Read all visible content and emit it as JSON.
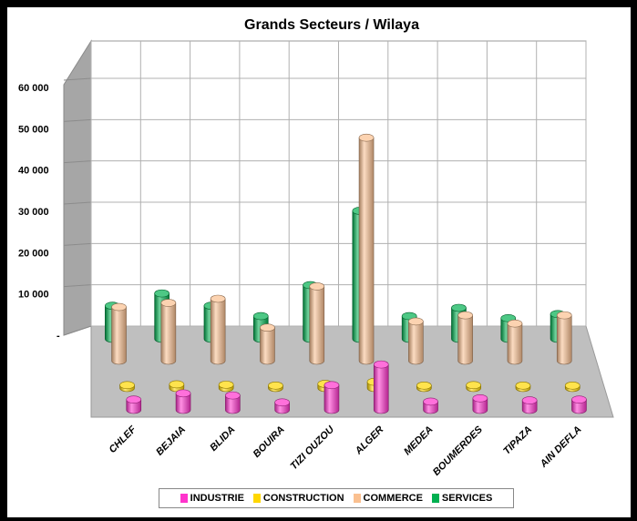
{
  "chart_data": {
    "type": "bar",
    "title": "Grands Secteurs / Wilaya",
    "xlabel": "",
    "ylabel": "",
    "ylim": [
      0,
      60000
    ],
    "yticks": [
      "-",
      "10 000",
      "20 000",
      "30 000",
      "40 000",
      "50 000",
      "60 000"
    ],
    "categories": [
      "CHLEF",
      "BEJAIA",
      "BLIDA",
      "BOUIRA",
      "TIZI OUZOU",
      "ALGER",
      "MEDEA",
      "BOUMERDES",
      "TIPAZA",
      "AIN DEFLA"
    ],
    "series": [
      {
        "name": "INDUSTRIE",
        "color": "#ff33cc",
        "values": [
          2500,
          4000,
          3500,
          1800,
          6000,
          11000,
          2000,
          2800,
          2300,
          2500
        ]
      },
      {
        "name": "CONSTRUCTION",
        "color": "#ffd700",
        "values": [
          700,
          900,
          800,
          600,
          1000,
          1500,
          600,
          700,
          600,
          600
        ]
      },
      {
        "name": "COMMERCE",
        "color": "#fac090",
        "values": [
          13000,
          14000,
          15000,
          8000,
          18000,
          54000,
          9500,
          11000,
          9000,
          11000
        ]
      },
      {
        "name": "SERVICES",
        "color": "#00b050",
        "values": [
          8000,
          11000,
          8000,
          5500,
          13000,
          31000,
          5500,
          7500,
          5000,
          6000
        ]
      }
    ],
    "grid": true,
    "legend_position": "bottom"
  }
}
